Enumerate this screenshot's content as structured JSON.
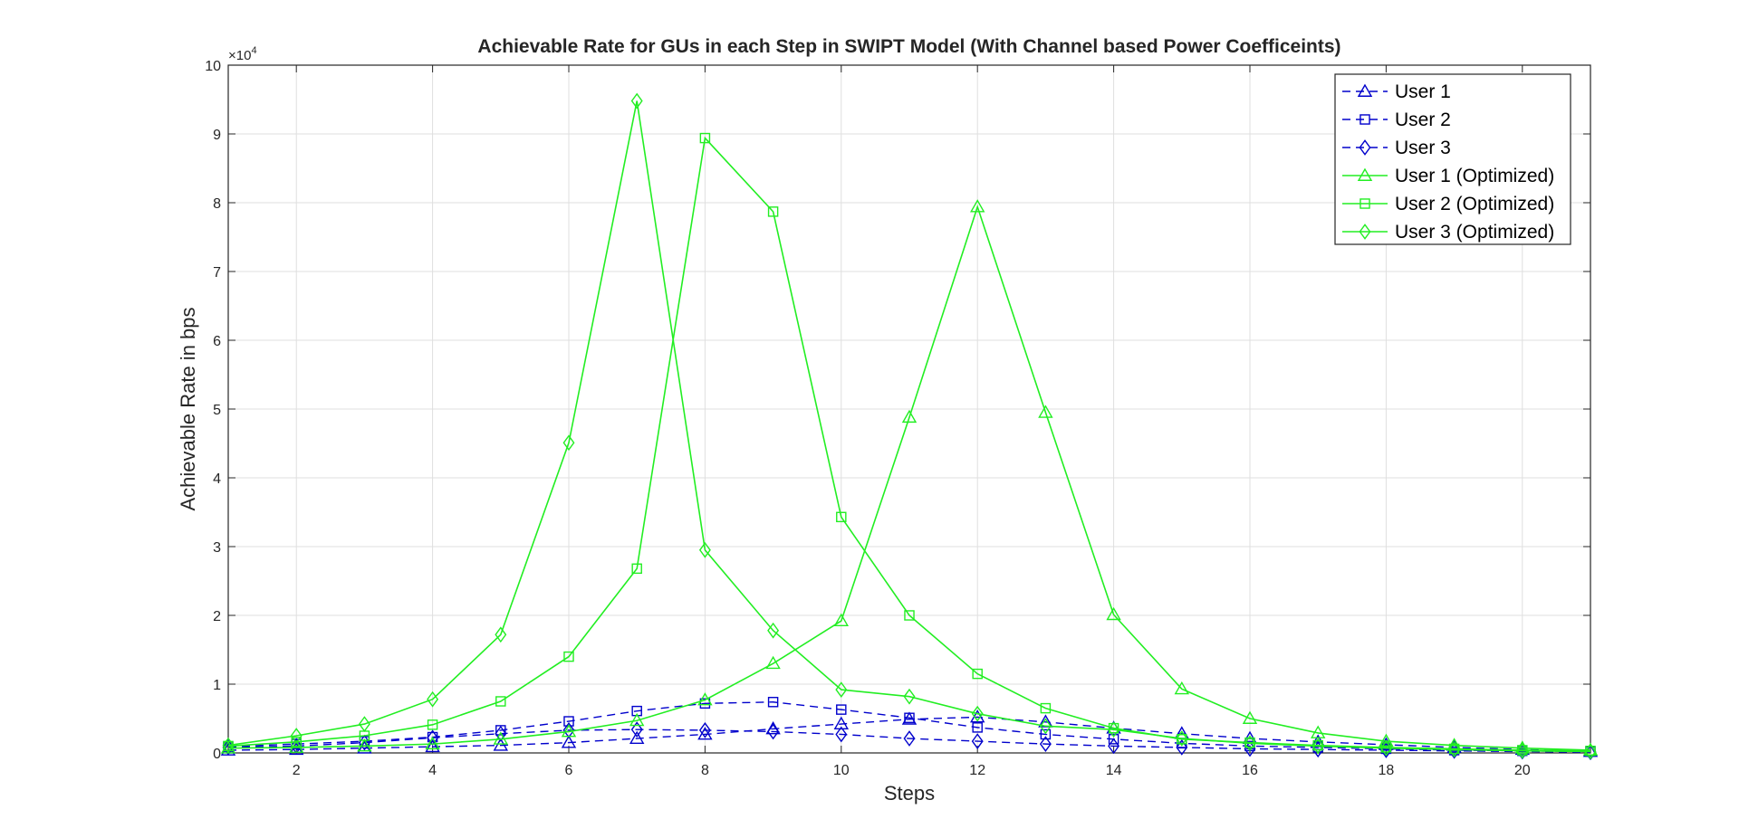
{
  "chart_data": {
    "type": "line",
    "title": "Achievable Rate for GUs in each Step in SWIPT Model (With Channel based Power Coefficeints)",
    "xlabel": "Steps",
    "ylabel": "Achievable Rate in bps",
    "y_exponent_label": "×10",
    "y_exponent_power": "4",
    "xlim": [
      1,
      21
    ],
    "ylim": [
      0,
      100000
    ],
    "x_ticks": [
      2,
      4,
      6,
      8,
      10,
      12,
      14,
      16,
      18,
      20
    ],
    "y_ticks": [
      0,
      10000,
      20000,
      30000,
      40000,
      50000,
      60000,
      70000,
      80000,
      90000,
      100000
    ],
    "y_tick_labels": [
      "0",
      "1",
      "2",
      "3",
      "4",
      "5",
      "6",
      "7",
      "8",
      "9",
      "10"
    ],
    "grid": true,
    "legend_position": "top-right",
    "x": [
      1,
      2,
      3,
      4,
      5,
      6,
      7,
      8,
      9,
      10,
      11,
      12,
      13,
      14,
      15,
      16,
      17,
      18,
      19,
      20,
      21
    ],
    "series": [
      {
        "name": "User 1",
        "color": "#0000cc",
        "line_style": "dashed",
        "marker": "triangle",
        "values": [
          400,
          500,
          700,
          900,
          1100,
          1500,
          2100,
          2700,
          3500,
          4200,
          4900,
          5200,
          4500,
          3600,
          2800,
          2100,
          1600,
          1200,
          800,
          500,
          200
        ]
      },
      {
        "name": "User 2",
        "color": "#0000cc",
        "line_style": "dashed",
        "marker": "square",
        "values": [
          900,
          1300,
          1700,
          2300,
          3300,
          4600,
          6100,
          7200,
          7400,
          6300,
          5100,
          3700,
          2700,
          2000,
          1400,
          1000,
          800,
          600,
          400,
          300,
          200
        ]
      },
      {
        "name": "User 3",
        "color": "#0000cc",
        "line_style": "dashed",
        "marker": "diamond",
        "values": [
          800,
          1000,
          1500,
          2200,
          2800,
          3300,
          3400,
          3300,
          3100,
          2700,
          2100,
          1700,
          1300,
          1000,
          800,
          600,
          500,
          400,
          300,
          200,
          100
        ]
      },
      {
        "name": "User 1 (Optimized)",
        "color": "#22ee22",
        "line_style": "solid",
        "marker": "triangle",
        "values": [
          700,
          800,
          1000,
          1300,
          2000,
          3100,
          4700,
          7700,
          13000,
          19200,
          48800,
          79400,
          49500,
          20100,
          9300,
          5000,
          2900,
          1700,
          1100,
          700,
          400
        ]
      },
      {
        "name": "User 2 (Optimized)",
        "color": "#22ee22",
        "line_style": "solid",
        "marker": "square",
        "values": [
          1000,
          1600,
          2500,
          4100,
          7500,
          14000,
          26800,
          89400,
          78700,
          34300,
          20000,
          11500,
          6500,
          3600,
          2000,
          1500,
          1100,
          800,
          600,
          400,
          300
        ]
      },
      {
        "name": "User 3 (Optimized)",
        "color": "#22ee22",
        "line_style": "solid",
        "marker": "diamond",
        "values": [
          1100,
          2500,
          4200,
          7800,
          17200,
          45100,
          94800,
          29500,
          17800,
          9200,
          8200,
          5700,
          3900,
          3400,
          2100,
          1400,
          1000,
          700,
          500,
          300,
          200
        ]
      }
    ]
  }
}
